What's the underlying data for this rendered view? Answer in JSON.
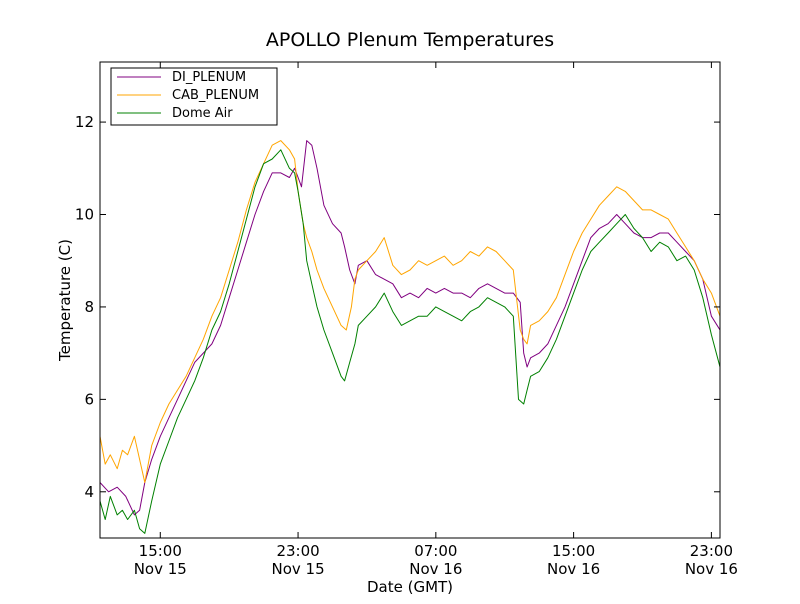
{
  "chart_data": {
    "type": "line",
    "title": "APOLLO Plenum Temperatures",
    "xlabel": "Date (GMT)",
    "ylabel": "Temperature (C)",
    "x_unit": "hours since Nov 15 11:00 GMT",
    "xlim": [
      0,
      36
    ],
    "ylim": [
      3,
      13.3
    ],
    "yticks": [
      4,
      6,
      8,
      10,
      12
    ],
    "xticks": [
      {
        "x": 3.5,
        "time": "15:00",
        "date": "Nov 15"
      },
      {
        "x": 11.5,
        "time": "23:00",
        "date": "Nov 15"
      },
      {
        "x": 19.5,
        "time": "07:00",
        "date": "Nov 16"
      },
      {
        "x": 27.5,
        "time": "15:00",
        "date": "Nov 16"
      },
      {
        "x": 35.5,
        "time": "23:00",
        "date": "Nov 16"
      }
    ],
    "legend_position": "top-left",
    "series": [
      {
        "name": "DI_PLENUM",
        "color": "#800080",
        "x": [
          0,
          0.5,
          1,
          1.5,
          2,
          2.3,
          2.6,
          3,
          3.5,
          4,
          4.5,
          5,
          5.5,
          6,
          6.5,
          7,
          7.5,
          8,
          8.5,
          9,
          9.5,
          10,
          10.5,
          11,
          11.3,
          11.5,
          11.7,
          12,
          12.3,
          12.6,
          13,
          13.5,
          14,
          14.2,
          14.5,
          14.8,
          15,
          15.5,
          16,
          16.5,
          17,
          17.5,
          18,
          18.5,
          19,
          19.5,
          20,
          20.5,
          21,
          21.5,
          22,
          22.5,
          23,
          23.5,
          24,
          24.4,
          24.6,
          24.8,
          25,
          25.5,
          26,
          26.5,
          27,
          27.5,
          28,
          28.5,
          29,
          29.5,
          30,
          30.5,
          31,
          31.5,
          32,
          32.5,
          33,
          33.5,
          34,
          34.5,
          35,
          35.5,
          36
        ],
        "y": [
          4.2,
          4.0,
          4.1,
          3.9,
          3.5,
          3.6,
          4.2,
          4.7,
          5.2,
          5.6,
          6.0,
          6.4,
          6.8,
          7.0,
          7.2,
          7.6,
          8.2,
          8.8,
          9.4,
          10.0,
          10.5,
          10.9,
          10.9,
          10.8,
          11.0,
          10.8,
          10.6,
          11.6,
          11.5,
          11.0,
          10.2,
          9.8,
          9.6,
          9.3,
          8.8,
          8.5,
          8.9,
          9.0,
          8.7,
          8.6,
          8.5,
          8.2,
          8.3,
          8.2,
          8.4,
          8.3,
          8.4,
          8.3,
          8.3,
          8.2,
          8.4,
          8.5,
          8.4,
          8.3,
          8.3,
          8.1,
          7.0,
          6.7,
          6.9,
          7.0,
          7.2,
          7.6,
          8.0,
          8.5,
          9.0,
          9.5,
          9.7,
          9.8,
          10.0,
          9.8,
          9.6,
          9.5,
          9.5,
          9.6,
          9.6,
          9.4,
          9.2,
          9.0,
          8.6,
          7.8,
          7.5
        ]
      },
      {
        "name": "CAB_PLENUM",
        "color": "#ffa500",
        "x": [
          0,
          0.3,
          0.6,
          1,
          1.3,
          1.6,
          2,
          2.3,
          2.6,
          3,
          3.5,
          4,
          4.5,
          5,
          5.5,
          6,
          6.5,
          7,
          7.5,
          8,
          8.5,
          9,
          9.5,
          10,
          10.5,
          11,
          11.3,
          11.5,
          11.8,
          12,
          12.3,
          12.6,
          13,
          13.5,
          14,
          14.3,
          14.6,
          14.8,
          15,
          15.5,
          16,
          16.5,
          17,
          17.5,
          18,
          18.5,
          19,
          19.5,
          20,
          20.5,
          21,
          21.5,
          22,
          22.5,
          23,
          23.5,
          24,
          24.4,
          24.6,
          24.8,
          25,
          25.5,
          26,
          26.5,
          27,
          27.5,
          28,
          28.5,
          29,
          29.5,
          30,
          30.5,
          31,
          31.5,
          32,
          32.5,
          33,
          33.5,
          34,
          34.5,
          35,
          35.5,
          36
        ],
        "y": [
          5.2,
          4.6,
          4.8,
          4.5,
          4.9,
          4.8,
          5.2,
          4.7,
          4.2,
          5.0,
          5.5,
          5.9,
          6.2,
          6.5,
          6.9,
          7.3,
          7.8,
          8.2,
          8.8,
          9.4,
          10.1,
          10.7,
          11.1,
          11.5,
          11.6,
          11.4,
          11.2,
          10.5,
          9.8,
          9.5,
          9.2,
          8.8,
          8.4,
          8.0,
          7.6,
          7.5,
          8.0,
          8.6,
          8.8,
          9.0,
          9.2,
          9.5,
          8.9,
          8.7,
          8.8,
          9.0,
          8.9,
          9.0,
          9.1,
          8.9,
          9.0,
          9.2,
          9.1,
          9.3,
          9.2,
          9.0,
          8.8,
          7.5,
          7.3,
          7.2,
          7.6,
          7.7,
          7.9,
          8.2,
          8.7,
          9.2,
          9.6,
          9.9,
          10.2,
          10.4,
          10.6,
          10.5,
          10.3,
          10.1,
          10.1,
          10.0,
          9.9,
          9.6,
          9.3,
          9.0,
          8.6,
          8.3,
          7.8
        ]
      },
      {
        "name": "Dome Air",
        "color": "#008000",
        "x": [
          0,
          0.3,
          0.6,
          1,
          1.3,
          1.6,
          2,
          2.3,
          2.6,
          3,
          3.5,
          4,
          4.5,
          5,
          5.5,
          6,
          6.5,
          7,
          7.5,
          8,
          8.5,
          9,
          9.5,
          10,
          10.5,
          11,
          11.3,
          11.5,
          11.8,
          12,
          12.3,
          12.6,
          13,
          13.5,
          14,
          14.2,
          14.5,
          14.8,
          15,
          15.5,
          16,
          16.5,
          17,
          17.5,
          18,
          18.5,
          19,
          19.5,
          20,
          20.5,
          21,
          21.5,
          22,
          22.5,
          23,
          23.5,
          24,
          24.3,
          24.6,
          24.8,
          25,
          25.5,
          26,
          26.5,
          27,
          27.5,
          28,
          28.5,
          29,
          29.5,
          30,
          30.5,
          31,
          31.5,
          32,
          32.5,
          33,
          33.5,
          34,
          34.5,
          35,
          35.5,
          36
        ],
        "y": [
          3.8,
          3.4,
          3.9,
          3.5,
          3.6,
          3.4,
          3.6,
          3.2,
          3.1,
          3.8,
          4.6,
          5.1,
          5.6,
          6.0,
          6.4,
          6.9,
          7.5,
          7.9,
          8.5,
          9.2,
          9.9,
          10.6,
          11.1,
          11.2,
          11.4,
          11.0,
          10.9,
          10.5,
          9.8,
          9.0,
          8.5,
          8.0,
          7.5,
          7.0,
          6.5,
          6.4,
          6.8,
          7.2,
          7.6,
          7.8,
          8.0,
          8.3,
          7.9,
          7.6,
          7.7,
          7.8,
          7.8,
          8.0,
          7.9,
          7.8,
          7.7,
          7.9,
          8.0,
          8.2,
          8.1,
          8.0,
          7.8,
          6.0,
          5.9,
          6.2,
          6.5,
          6.6,
          6.9,
          7.3,
          7.8,
          8.3,
          8.8,
          9.2,
          9.4,
          9.6,
          9.8,
          10.0,
          9.7,
          9.5,
          9.2,
          9.4,
          9.3,
          9.0,
          9.1,
          8.8,
          8.2,
          7.4,
          6.7
        ]
      }
    ]
  }
}
